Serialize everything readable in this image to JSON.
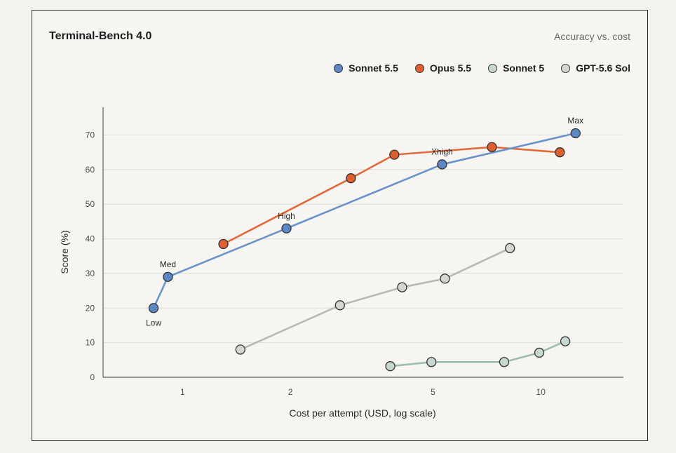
{
  "chart_data": {
    "type": "line",
    "title": "Terminal-Bench 4.0",
    "subtitle": "Accuracy vs. cost",
    "xlabel": "Cost per attempt (USD, log scale)",
    "ylabel": "Score (%)",
    "x_scale": "log",
    "xlim": [
      0.6,
      17
    ],
    "ylim": [
      0,
      78
    ],
    "x_ticks": [
      1,
      2,
      5,
      10
    ],
    "x_tick_labels": [
      "1",
      "2",
      "5",
      "10"
    ],
    "y_ticks": [
      0,
      10,
      20,
      30,
      40,
      50,
      60,
      70
    ],
    "y_tick_labels": [
      "0",
      "10",
      "20",
      "30",
      "40",
      "50",
      "60",
      "70"
    ],
    "grid": "horizontal",
    "legend_position": "top-right",
    "series": [
      {
        "name": "Sonnet 5.5",
        "color": "#5b87c4",
        "line_color": "#6a93c9",
        "points": [
          {
            "x": 0.83,
            "y": 20,
            "label": "Low",
            "label_pos": "below"
          },
          {
            "x": 0.91,
            "y": 29,
            "label": "Med",
            "label_pos": "above"
          },
          {
            "x": 1.95,
            "y": 43,
            "label": "High",
            "label_pos": "above"
          },
          {
            "x": 5.3,
            "y": 61.5,
            "label": "Xhigh",
            "label_pos": "above-left"
          },
          {
            "x": 12.5,
            "y": 70.5,
            "label": "Max",
            "label_pos": "above"
          }
        ]
      },
      {
        "name": "Opus 5.5",
        "color": "#e05f2e",
        "line_color": "#e06a3a",
        "points": [
          {
            "x": 1.3,
            "y": 38.5
          },
          {
            "x": 2.95,
            "y": 57.5
          },
          {
            "x": 3.9,
            "y": 64.3
          },
          {
            "x": 7.3,
            "y": 66.5
          },
          {
            "x": 11.3,
            "y": 65
          }
        ]
      },
      {
        "name": "Sonnet 5",
        "color": "#c6d8cf",
        "line_color": "#9fbcb0",
        "points": [
          {
            "x": 3.8,
            "y": 3.2
          },
          {
            "x": 4.95,
            "y": 4.4
          },
          {
            "x": 7.9,
            "y": 4.4
          },
          {
            "x": 9.9,
            "y": 7.1
          },
          {
            "x": 11.7,
            "y": 10.4
          }
        ]
      },
      {
        "name": "GPT-5.6 Sol",
        "color": "#d6d5cf",
        "line_color": "#b9b8b2",
        "points": [
          {
            "x": 1.45,
            "y": 8
          },
          {
            "x": 2.75,
            "y": 20.8
          },
          {
            "x": 4.1,
            "y": 26
          },
          {
            "x": 5.4,
            "y": 28.5
          },
          {
            "x": 8.2,
            "y": 37.3
          }
        ]
      }
    ]
  }
}
